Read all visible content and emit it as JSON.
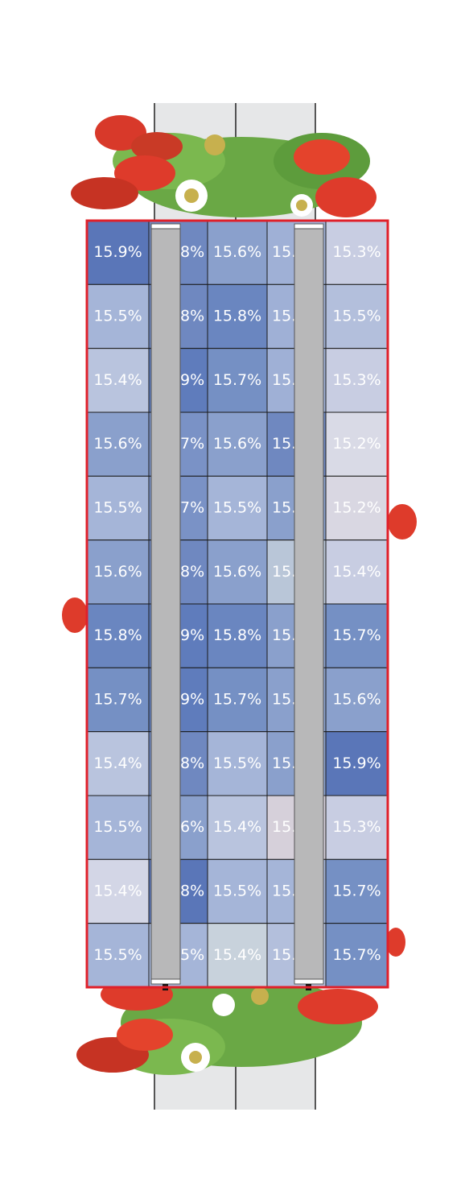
{
  "rows": [
    [
      "15.9%",
      "8%",
      "15.6%",
      "15.",
      "15.3%"
    ],
    [
      "15.5%",
      "8%",
      "15.8%",
      "15.",
      "15.5%"
    ],
    [
      "15.4%",
      "9%",
      "15.7%",
      "15.",
      "15.3%"
    ],
    [
      "15.6%",
      "7%",
      "15.6%",
      "15.",
      "15.2%"
    ],
    [
      "15.5%",
      "7%",
      "15.5%",
      "15.",
      "15.2%"
    ],
    [
      "15.6%",
      "8%",
      "15.6%",
      "15.",
      "15.4%"
    ],
    [
      "15.8%",
      "9%",
      "15.8%",
      "15.",
      "15.7%"
    ],
    [
      "15.7%",
      "9%",
      "15.7%",
      "15.",
      "15.6%"
    ],
    [
      "15.4%",
      "8%",
      "15.5%",
      "15.",
      "15.9%"
    ],
    [
      "15.5%",
      "6%",
      "15.4%",
      "15.",
      "15.3%"
    ],
    [
      "15.4%",
      "8%",
      "15.5%",
      "15.",
      "15.7%"
    ],
    [
      "15.5%",
      "5%",
      "15.4%",
      "15.",
      "15.7%"
    ]
  ],
  "cell_colors": [
    [
      "#5a76b8",
      "#6f88c0",
      "#8aa0cc",
      "#9fb0d6",
      "#c8cde2"
    ],
    [
      "#a5b5d8",
      "#6f88c0",
      "#6a86c0",
      "#9fb0d6",
      "#b3bfdc"
    ],
    [
      "#b9c4de",
      "#5f7cbc",
      "#7590c4",
      "#9fb0d6",
      "#c8cde2"
    ],
    [
      "#8aa0cc",
      "#7a92c6",
      "#8aa0cc",
      "#6f88c0",
      "#d9dae6"
    ],
    [
      "#a5b5d8",
      "#7a92c6",
      "#a5b5d8",
      "#8aa0cc",
      "#d9d7e2"
    ],
    [
      "#8aa0cc",
      "#6f88c0",
      "#8aa0cc",
      "#b9c6d8",
      "#c8cde2"
    ],
    [
      "#6a86c0",
      "#5f7cbc",
      "#6a86c0",
      "#8aa0cc",
      "#7590c4"
    ],
    [
      "#7590c4",
      "#5f7cbc",
      "#7590c4",
      "#8aa0cc",
      "#8aa0cc"
    ],
    [
      "#b9c4de",
      "#6f88c0",
      "#a5b5d8",
      "#8aa0cc",
      "#5a76b8"
    ],
    [
      "#a5b5d8",
      "#8aa0cc",
      "#b9c4de",
      "#d6d0da",
      "#c8cde2"
    ],
    [
      "#d3d6e6",
      "#5a76b8",
      "#a5b5d8",
      "#a5b5d8",
      "#7590c4"
    ],
    [
      "#a5b5d8",
      "#a5b5d8",
      "#c8d2dc",
      "#b3bfdc",
      "#7590c4"
    ]
  ]
}
